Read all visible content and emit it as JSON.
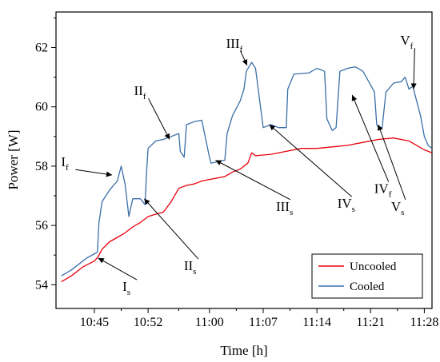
{
  "chart_data": {
    "type": "line",
    "xlabel": "Time [h]",
    "ylabel": "Power [W]",
    "x_ticks": [
      "10:45",
      "10:52",
      "11:00",
      "11:07",
      "11:14",
      "11:21",
      "11:28"
    ],
    "y_ticks": [
      54,
      56,
      58,
      60,
      62
    ],
    "xlim_minutes_after_10": [
      40,
      89
    ],
    "ylim": [
      53.2,
      63.2
    ],
    "legend_position": "bottom-right",
    "series": [
      {
        "name": "Uncooled",
        "color": "#e8000b",
        "x_minutes_after_10": [
          40.7,
          42,
          43.5,
          45,
          45.5,
          46,
          47,
          48,
          49,
          50,
          51,
          52,
          53,
          54,
          55,
          56,
          57,
          58,
          59,
          60,
          61,
          62,
          63,
          64,
          65,
          65.5,
          66,
          68,
          70,
          72,
          74,
          76,
          78,
          80,
          82,
          84,
          86,
          87,
          88,
          89
        ],
        "values": [
          54.1,
          54.3,
          54.6,
          54.8,
          54.95,
          55.2,
          55.45,
          55.6,
          55.75,
          55.95,
          56.1,
          56.3,
          56.38,
          56.45,
          56.8,
          57.25,
          57.35,
          57.4,
          57.5,
          57.55,
          57.6,
          57.65,
          57.8,
          57.9,
          58.1,
          58.45,
          58.35,
          58.4,
          58.5,
          58.6,
          58.6,
          58.65,
          58.7,
          58.8,
          58.9,
          58.95,
          58.85,
          58.7,
          58.55,
          58.45
        ]
      },
      {
        "name": "Cooled",
        "color": "#3a6ea8",
        "x_minutes_after_10": [
          40.7,
          42,
          44,
          45.4,
          45.6,
          46,
          47,
          48,
          48.5,
          49,
          49.5,
          50,
          51,
          51.6,
          51.8,
          52,
          53,
          54,
          55,
          56,
          56.2,
          56.7,
          57,
          58,
          59,
          60,
          60.2,
          61,
          62,
          62.3,
          63,
          64,
          64.5,
          64.8,
          65.5,
          66,
          66.5,
          67,
          68,
          69,
          70,
          70.2,
          71,
          73,
          74,
          75,
          75.3,
          76,
          76.5,
          77,
          78,
          79,
          80,
          81.5,
          81.8,
          82,
          82.5,
          83,
          84,
          85,
          85.5,
          86,
          86.5,
          87,
          87.5,
          88,
          88.5,
          89
        ],
        "values": [
          54.3,
          54.5,
          54.9,
          55.1,
          56.1,
          56.8,
          57.2,
          57.5,
          58.0,
          57.4,
          56.3,
          56.9,
          56.9,
          56.7,
          57.8,
          58.6,
          58.85,
          58.9,
          59.0,
          59.1,
          58.5,
          58.3,
          59.4,
          59.5,
          59.55,
          58.3,
          58.1,
          58.15,
          58.2,
          59.1,
          59.7,
          60.2,
          60.6,
          61.2,
          61.5,
          61.3,
          60.3,
          59.3,
          59.4,
          59.3,
          59.3,
          60.6,
          61.1,
          61.15,
          61.3,
          61.2,
          59.6,
          59.2,
          59.3,
          61.2,
          61.3,
          61.35,
          61.2,
          60.5,
          59.4,
          59.3,
          59.3,
          60.5,
          60.8,
          60.85,
          61.0,
          60.6,
          60.7,
          60.2,
          59.7,
          59.0,
          58.7,
          58.6
        ]
      }
    ],
    "annotations": [
      {
        "base": "I",
        "sub": "f"
      },
      {
        "base": "I",
        "sub": "s"
      },
      {
        "base": "II",
        "sub": "f"
      },
      {
        "base": "II",
        "sub": "s"
      },
      {
        "base": "III",
        "sub": "f"
      },
      {
        "base": "III",
        "sub": "s"
      },
      {
        "base": "IV",
        "sub": "s"
      },
      {
        "base": "IV",
        "sub": "f"
      },
      {
        "base": "V",
        "sub": "f"
      },
      {
        "base": "V",
        "sub": "s"
      }
    ]
  }
}
